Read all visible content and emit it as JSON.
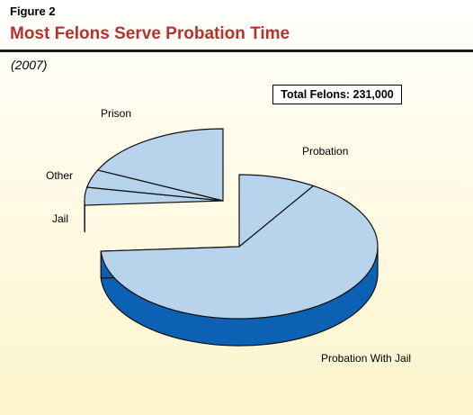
{
  "figure": {
    "label": "Figure 2",
    "title": "Most Felons Serve Probation Time",
    "subtitle": "(2007)"
  },
  "total_box": "Total Felons: 231,000",
  "colors": {
    "slice_top": "#b8d3ec",
    "slice_side": "#0b62b4",
    "outline": "#111111",
    "title": "#b5322d"
  },
  "chart_data": {
    "type": "pie",
    "style": "3d-exploded",
    "title": "Most Felons Serve Probation Time",
    "subtitle": "(2007)",
    "annotation": "Total Felons: 231,000",
    "slices": [
      {
        "label": "Probation",
        "percent": 9
      },
      {
        "label": "Probation With Jail",
        "percent": 65
      },
      {
        "label": "Jail",
        "percent": 4
      },
      {
        "label": "Other",
        "percent": 4
      },
      {
        "label": "Prison",
        "percent": 18
      }
    ],
    "exploded_group": [
      "Jail",
      "Other",
      "Prison"
    ]
  }
}
